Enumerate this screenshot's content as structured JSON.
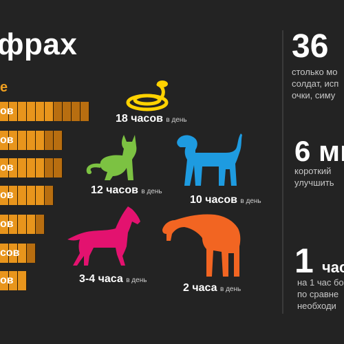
{
  "title": "фрах",
  "subhead": "е",
  "bars": [
    {
      "label": "ов",
      "light": 6,
      "dark": 4
    },
    {
      "label": "ов",
      "light": 5,
      "dark": 2
    },
    {
      "label": "ов",
      "light": 5,
      "dark": 2
    },
    {
      "label": "ов",
      "light": 5,
      "dark": 1
    },
    {
      "label": "ов",
      "light": 4,
      "dark": 1
    },
    {
      "label": "сов",
      "light": 3,
      "dark": 1
    },
    {
      "label": "ов",
      "light": 3,
      "dark": 0
    }
  ],
  "animals": [
    {
      "name": "snake",
      "hours": "18 часов",
      "unit": "в день",
      "color": "#ffd200"
    },
    {
      "name": "cat",
      "hours": "12 часов",
      "unit": "в день",
      "color": "#7cc242"
    },
    {
      "name": "dog",
      "hours": "10 часов",
      "unit": "в день",
      "color": "#1e9be0"
    },
    {
      "name": "horse",
      "hours": "3-4 часа",
      "unit": "в день",
      "color": "#e3126f"
    },
    {
      "name": "giraffe",
      "hours": "2 часа",
      "unit": "в день",
      "color": "#f26522"
    }
  ],
  "stats": [
    {
      "num": "36",
      "lines": [
        "столько мо",
        "солдат, исп",
        "очки, симу"
      ]
    },
    {
      "num": "6 ми",
      "lines": [
        "короткий",
        "улучшить"
      ]
    },
    {
      "num": "1",
      "suffix": "час",
      "lines": [
        "на 1 час бо",
        "по сравне",
        "необходи"
      ]
    }
  ]
}
